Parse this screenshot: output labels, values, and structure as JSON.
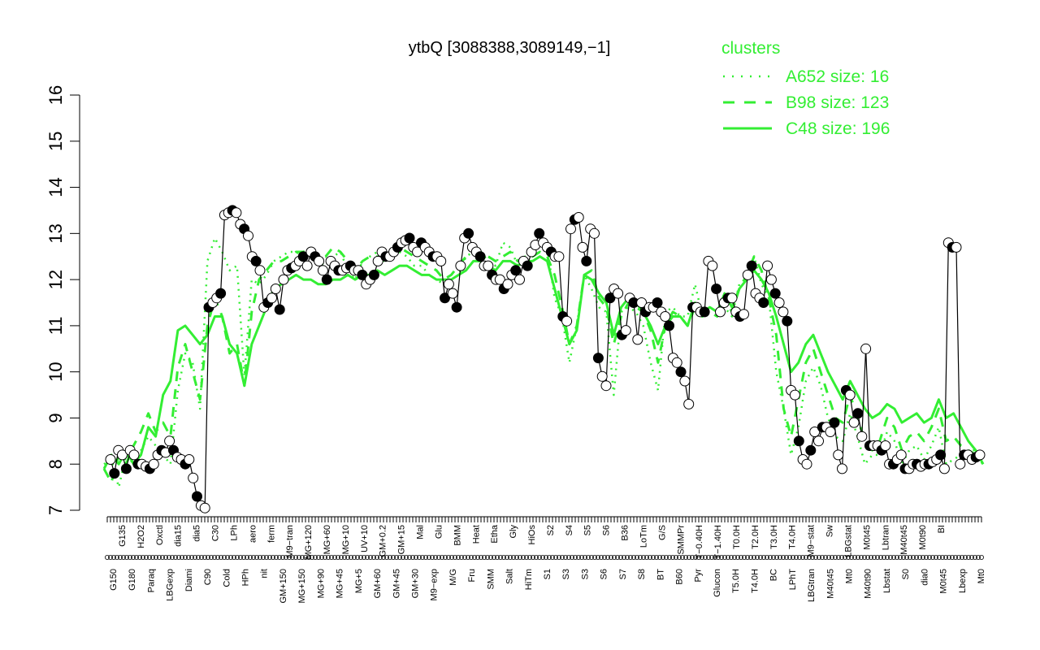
{
  "chart_data": {
    "type": "line",
    "title": "ytbQ [3088388,3089149,−1]",
    "xlabel": "",
    "ylabel": "",
    "ylim": [
      7,
      16
    ],
    "yticks": [
      7,
      8,
      9,
      10,
      11,
      12,
      13,
      14,
      15,
      16
    ],
    "grid": false,
    "legend": {
      "title": "clusters",
      "placement": "top-right",
      "color": "#33ee33",
      "entries": [
        {
          "label": "A652 size: 16",
          "style": "dotted"
        },
        {
          "label": "B98 size: 123",
          "style": "dashed"
        },
        {
          "label": "C48 size: 196",
          "style": "solid"
        }
      ]
    },
    "x_tick_labels_upper": [
      "G135",
      "H2O2",
      "Oxctl",
      "dia15",
      "dia5",
      "C30",
      "LPh",
      "aero",
      "ferm",
      "M9−tran",
      "MG+120",
      "MG+60",
      "MG+10",
      "UV+10",
      "GM+0.2",
      "GM+15",
      "Mal",
      "Glu",
      "BMM",
      "Heat",
      "Etha",
      "Gly",
      "HiOs",
      "S2",
      "S4",
      "S5",
      "S6",
      "B36",
      "LoTm",
      "G/S",
      "SMMPr",
      "T−0.40H",
      "T−1.40H",
      "T0.0H",
      "T2.0H",
      "T3.0H",
      "T4.0H",
      "M9−stat",
      "Sw",
      "LBGstat",
      "M0t45",
      "Lbtran",
      "M40t45",
      "M0t90",
      "BI"
    ],
    "x_tick_labels_lower": [
      "G150",
      "G180",
      "Paraq",
      "LBGexp",
      "Diami",
      "C90",
      "Cold",
      "HPh",
      "nit",
      "GM+150",
      "MG+150",
      "MG+90",
      "MG+45",
      "MG+5",
      "GM+60",
      "GM+45",
      "GM+30",
      "M9−exp",
      "M/G",
      "Fru",
      "SMM",
      "Salt",
      "HiTm",
      "S1",
      "S3",
      "S3",
      "S6",
      "S7",
      "S8",
      "BT",
      "B60",
      "Pyr",
      "Glucon",
      "T5.0H",
      "T4.0H",
      "BC",
      "LPhT",
      "LBGtran",
      "M40t45",
      "Mt0",
      "M40t90",
      "Lbstat",
      "S0",
      "dia0",
      "M0t45",
      "Lbexp",
      "Mt0"
    ],
    "dotted_series_y": [
      8.0,
      8.1,
      7.5,
      8.2,
      8.0,
      8.3,
      8.6,
      8.4,
      8.2,
      8.0,
      9.6,
      10.4,
      10.2,
      9.2,
      12.4,
      12.9,
      12.6,
      12.2,
      12.3,
      9.9,
      12.0,
      11.9,
      12.1,
      12.4,
      12.5,
      12.6,
      12.6,
      12.5,
      12.6,
      12.4,
      12.3,
      12.5,
      12.6,
      12.2,
      12.0,
      12.4,
      12.5,
      12.6,
      12.4,
      12.7,
      12.6,
      12.5,
      12.3,
      12.3,
      12.1,
      12.0,
      11.9,
      12.0,
      12.1,
      12.5,
      12.6,
      12.6,
      12.4,
      12.3,
      12.8,
      12.7,
      12.3,
      12.5,
      12.6,
      12.9,
      12.7,
      11.6,
      11.2,
      10.2,
      11.0,
      12.1,
      11.8,
      11.4,
      11.3,
      9.5,
      11.3,
      11.4,
      11.3,
      11.0,
      10.2,
      9.6,
      11.3,
      11.4,
      11.2,
      11.2,
      11.9,
      11.2,
      11.4,
      11.3,
      11.4,
      11.2,
      11.9,
      12.0,
      12.5,
      11.9,
      11.6,
      10.0,
      9.2,
      8.2,
      8.8,
      9.8,
      10.1,
      9.7,
      9.0,
      8.6,
      8.5,
      9.1,
      8.6,
      8.0,
      8.2,
      8.2,
      8.7,
      8.5,
      8.0,
      8.3,
      8.4,
      8.1,
      8.4,
      8.8,
      8.0,
      8.1,
      8.2,
      8.3,
      8.3,
      8.0
    ],
    "dashed_series_y": [
      7.9,
      7.6,
      8.2,
      8.0,
      8.4,
      8.7,
      9.1,
      8.7,
      8.9,
      8.6,
      10.1,
      10.6,
      10.0,
      9.4,
      11.0,
      11.6,
      11.2,
      10.4,
      10.6,
      9.7,
      11.3,
      12.0,
      12.2,
      12.4,
      12.4,
      12.5,
      12.6,
      12.6,
      12.7,
      12.5,
      12.5,
      12.7,
      12.6,
      12.4,
      12.2,
      12.4,
      12.5,
      12.5,
      12.4,
      12.5,
      12.7,
      12.6,
      12.5,
      12.4,
      12.3,
      12.2,
      12.0,
      12.1,
      12.3,
      12.5,
      12.6,
      12.6,
      12.5,
      12.4,
      12.5,
      12.6,
      12.4,
      12.5,
      12.5,
      12.6,
      12.5,
      12.1,
      11.4,
      10.6,
      11.0,
      12.1,
      12.2,
      11.6,
      11.4,
      10.6,
      11.2,
      11.5,
      11.4,
      11.3,
      10.9,
      10.2,
      11.0,
      11.3,
      11.2,
      11.0,
      11.4,
      11.2,
      11.3,
      11.2,
      11.6,
      11.3,
      11.8,
      12.1,
      12.5,
      12.2,
      11.6,
      10.8,
      9.2,
      8.6,
      9.4,
      10.2,
      10.5,
      10.0,
      9.5,
      9.0,
      8.9,
      9.5,
      9.0,
      8.5,
      8.3,
      8.5,
      9.0,
      8.8,
      8.3,
      8.6,
      8.7,
      8.5,
      8.8,
      9.2,
      8.5,
      8.6,
      8.4,
      8.3,
      8.2,
      8.0
    ],
    "solid_series_y": [
      7.9,
      8.2,
      8.0,
      8.3,
      8.0,
      8.2,
      8.8,
      8.6,
      9.5,
      9.8,
      10.9,
      11.0,
      10.8,
      10.6,
      10.8,
      11.2,
      11.2,
      10.6,
      10.4,
      9.7,
      10.6,
      11.0,
      11.4,
      11.8,
      11.9,
      12.0,
      12.1,
      12.0,
      12.0,
      11.9,
      11.9,
      12.0,
      12.0,
      12.1,
      12.0,
      12.1,
      12.1,
      12.2,
      12.1,
      12.2,
      12.3,
      12.3,
      12.2,
      12.1,
      12.1,
      12.0,
      12.0,
      12.0,
      12.1,
      12.2,
      12.4,
      12.4,
      12.3,
      12.2,
      12.4,
      12.4,
      12.3,
      12.4,
      12.4,
      12.5,
      12.4,
      11.8,
      11.2,
      10.6,
      10.9,
      12.1,
      12.0,
      11.7,
      11.5,
      10.8,
      11.4,
      11.6,
      11.5,
      11.3,
      11.0,
      10.6,
      11.0,
      11.2,
      11.2,
      11.0,
      11.5,
      11.3,
      11.4,
      11.3,
      11.7,
      11.4,
      11.8,
      12.0,
      12.2,
      12.0,
      11.7,
      11.2,
      10.6,
      10.0,
      10.2,
      10.6,
      10.8,
      10.4,
      10.0,
      9.7,
      9.4,
      9.8,
      9.5,
      9.2,
      9.0,
      9.1,
      9.3,
      9.2,
      8.9,
      9.0,
      9.1,
      8.9,
      9.0,
      9.4,
      9.0,
      9.1,
      8.8,
      8.5,
      8.3,
      8.0
    ],
    "points_y": [
      8.1,
      7.8,
      8.3,
      8.2,
      7.9,
      8.3,
      8.2,
      8.0,
      8.0,
      7.95,
      7.9,
      8.0,
      8.2,
      8.3,
      8.25,
      8.5,
      8.3,
      8.15,
      8.1,
      8.0,
      8.1,
      7.7,
      7.3,
      7.1,
      7.05,
      11.4,
      11.5,
      11.6,
      11.7,
      13.4,
      13.45,
      13.5,
      13.45,
      13.2,
      13.1,
      12.95,
      12.5,
      12.4,
      12.2,
      11.4,
      11.5,
      11.6,
      11.8,
      11.35,
      12.0,
      12.2,
      12.25,
      12.3,
      12.4,
      12.5,
      12.3,
      12.6,
      12.5,
      12.4,
      12.2,
      12.0,
      12.4,
      12.3,
      12.2,
      12.2,
      12.25,
      12.3,
      12.2,
      12.2,
      12.1,
      11.9,
      12.0,
      12.1,
      12.4,
      12.6,
      12.5,
      12.5,
      12.6,
      12.7,
      12.8,
      12.85,
      12.9,
      12.7,
      12.6,
      12.8,
      12.7,
      12.6,
      12.5,
      12.5,
      12.4,
      11.6,
      11.9,
      11.7,
      11.4,
      12.3,
      12.9,
      13.0,
      12.7,
      12.6,
      12.5,
      12.3,
      12.3,
      12.1,
      12.0,
      12.0,
      11.8,
      11.9,
      12.1,
      12.2,
      12.0,
      12.4,
      12.3,
      12.6,
      12.75,
      13.0,
      12.8,
      12.7,
      12.6,
      12.5,
      12.5,
      11.2,
      11.1,
      13.1,
      13.3,
      13.35,
      12.7,
      12.4,
      13.1,
      13.0,
      10.3,
      9.9,
      9.7,
      11.6,
      11.8,
      11.7,
      10.8,
      10.9,
      11.6,
      11.5,
      10.7,
      11.5,
      11.3,
      11.4,
      11.4,
      11.5,
      11.3,
      11.2,
      11.0,
      10.3,
      10.2,
      10.0,
      9.8,
      9.3,
      11.4,
      11.4,
      11.3,
      11.3,
      12.4,
      12.3,
      11.8,
      11.3,
      11.5,
      11.6,
      11.6,
      11.3,
      11.2,
      11.25,
      12.1,
      12.3,
      11.7,
      11.6,
      11.5,
      12.3,
      12.0,
      11.7,
      11.5,
      11.3,
      11.1,
      9.6,
      9.5,
      8.5,
      8.1,
      8.0,
      8.3,
      8.7,
      8.5,
      8.8,
      8.8,
      8.7,
      8.9,
      8.2,
      7.9,
      9.6,
      9.5,
      8.9,
      9.1,
      8.6,
      10.5,
      8.4,
      8.4,
      8.4,
      8.3,
      8.4,
      8.0,
      8.0,
      8.1,
      8.2,
      7.9,
      7.9,
      8.0,
      8.0,
      7.95,
      8.0,
      8.0,
      8.05,
      8.1,
      8.2,
      7.9,
      12.8,
      12.7,
      12.7,
      8.0,
      8.2,
      8.2,
      8.1,
      8.15,
      8.2
    ]
  }
}
